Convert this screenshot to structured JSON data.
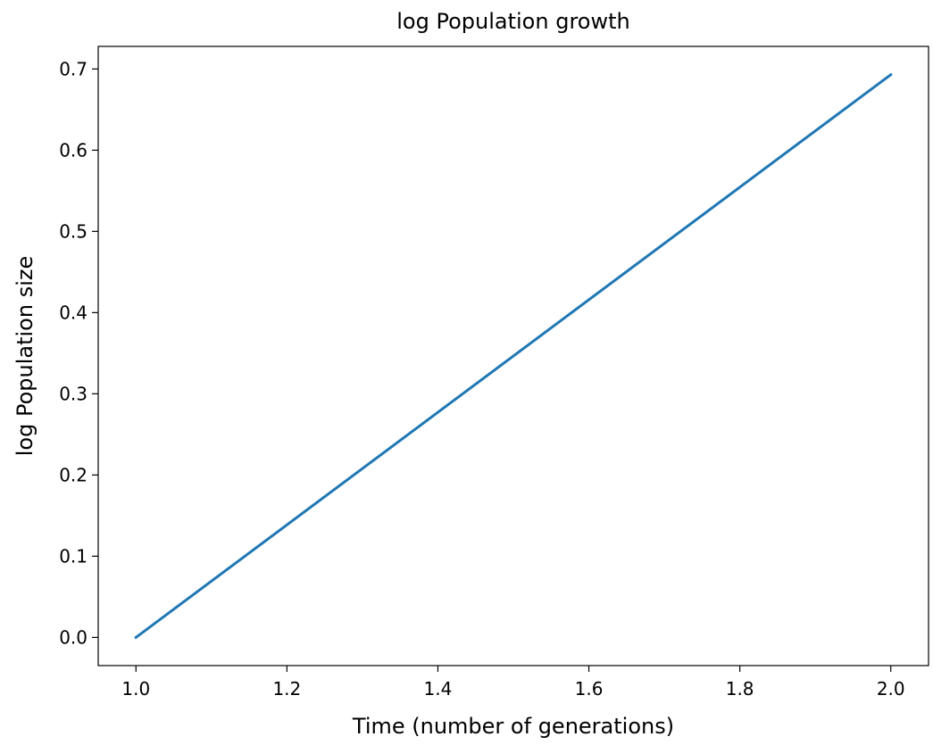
{
  "chart_data": {
    "type": "line",
    "title": "log Population growth",
    "xlabel": "Time (number of generations)",
    "ylabel": "log Population size",
    "xlim": [
      0.95,
      2.05
    ],
    "ylim": [
      -0.0347,
      0.7278
    ],
    "x_ticks": [
      "1.0",
      "1.2",
      "1.4",
      "1.6",
      "1.8",
      "2.0"
    ],
    "y_ticks": [
      "0.0",
      "0.1",
      "0.2",
      "0.3",
      "0.4",
      "0.5",
      "0.6",
      "0.7"
    ],
    "grid": false,
    "series": [
      {
        "color": "#1f77b4",
        "x": [
          1.0,
          2.0
        ],
        "y": [
          0.0,
          0.693
        ]
      }
    ]
  }
}
